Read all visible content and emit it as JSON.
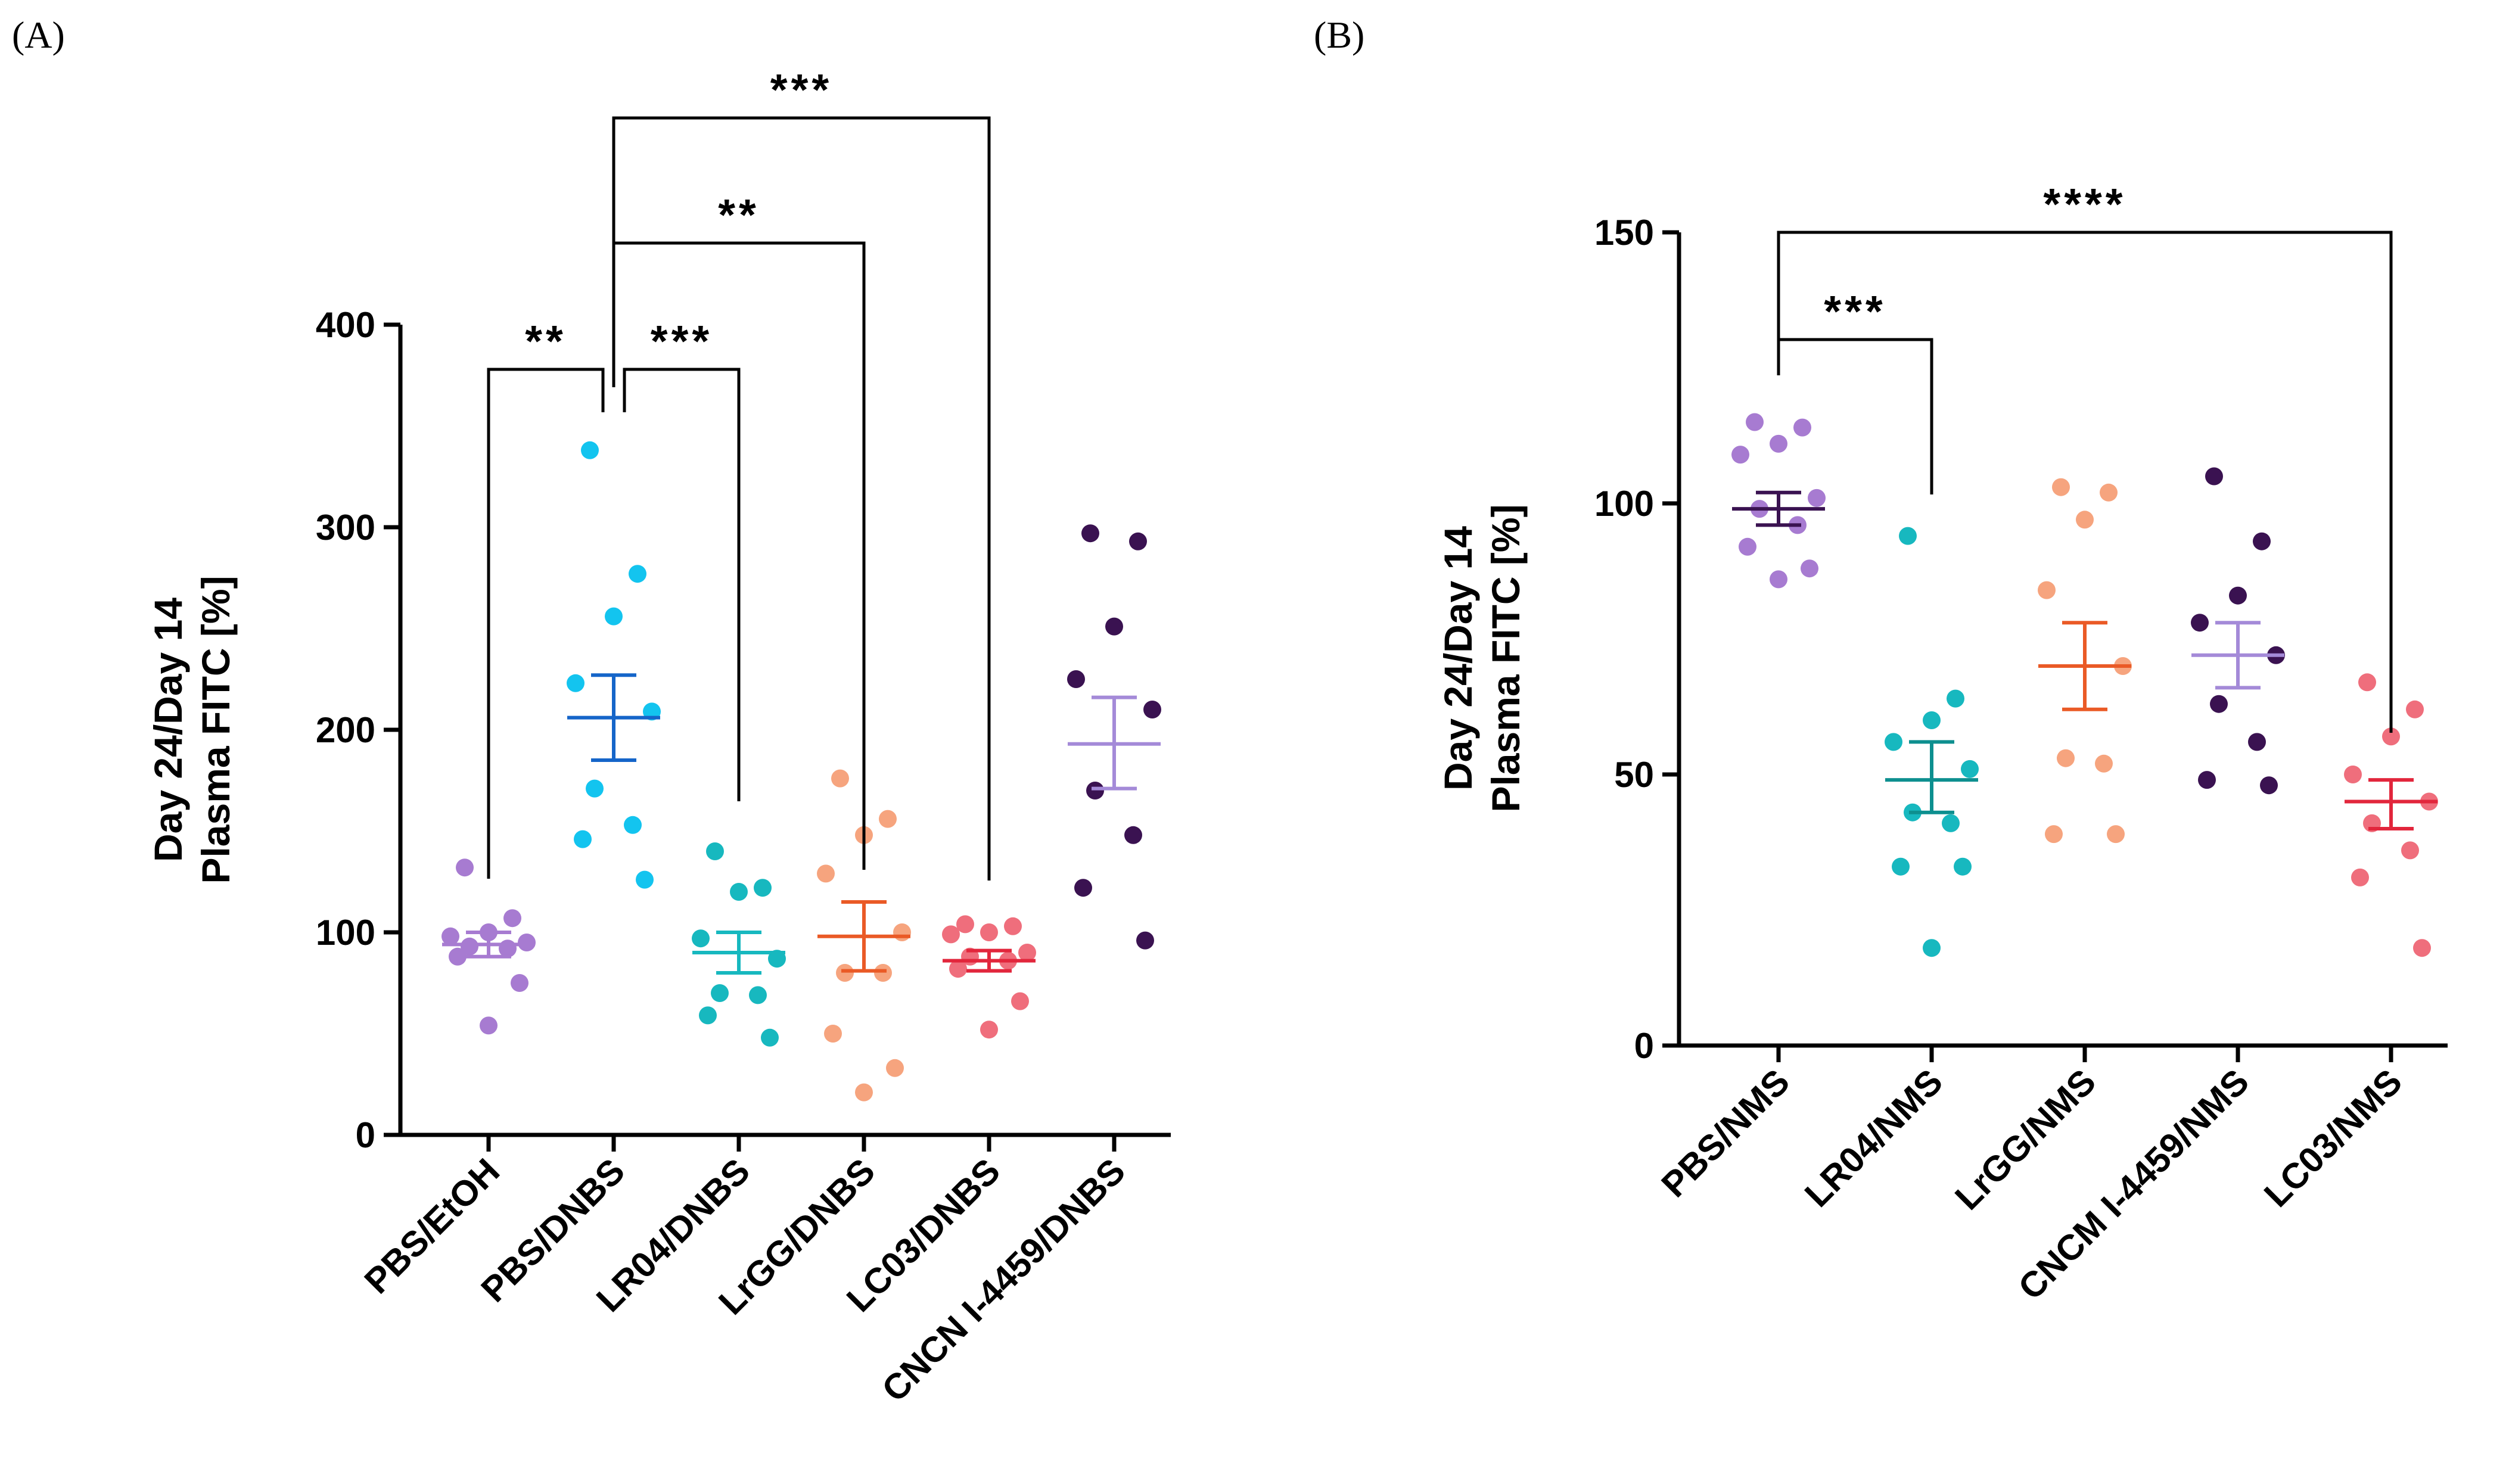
{
  "chart_data": [
    {
      "type": "scatter",
      "panel": "(A)",
      "ylabel": [
        "Day 24/Day 14",
        "Plasma FITC [%]"
      ],
      "ylim": [
        0,
        400
      ],
      "yticks": [
        0,
        100,
        200,
        300,
        400
      ],
      "groups": [
        {
          "name": "PBS/EtOH",
          "color": "#a77bd1",
          "mean": 94,
          "sem_low": 88,
          "sem_high": 100,
          "points": [
            132,
            107,
            100,
            98,
            95,
            93,
            92,
            88,
            75,
            54
          ]
        },
        {
          "name": "PBS/DNBS",
          "color": "#13c4ef",
          "error_color": "#1565c9",
          "mean": 206,
          "sem_low": 185,
          "sem_high": 227,
          "points": [
            338,
            277,
            256,
            223,
            209,
            171,
            153,
            146,
            126
          ]
        },
        {
          "name": "LR04/DNBS",
          "color": "#17b8bf",
          "mean": 90,
          "sem_low": 80,
          "sem_high": 100,
          "points": [
            140,
            122,
            120,
            97,
            87,
            70,
            69,
            59,
            48
          ]
        },
        {
          "name": "LrGG/DNBS",
          "color": "#f6a47e",
          "error_color": "#ea5a26",
          "mean": 98,
          "sem_low": 81,
          "sem_high": 115,
          "points": [
            176,
            156,
            148,
            129,
            100,
            80,
            80,
            50,
            33,
            21
          ]
        },
        {
          "name": "LC03/DNBS",
          "color": "#ef6e7c",
          "error_color": "#e2263c",
          "mean": 86,
          "sem_low": 81,
          "sem_high": 91,
          "points": [
            104,
            103,
            100,
            99,
            90,
            88,
            86,
            82,
            66,
            52
          ]
        },
        {
          "name": "CNCN I-4459/DNBS",
          "color": "#3a1251",
          "error_color": "#a48ad8",
          "mean": 193,
          "sem_low": 171,
          "sem_high": 216,
          "points": [
            297,
            293,
            251,
            225,
            210,
            170,
            148,
            122,
            96
          ]
        }
      ],
      "significance": [
        {
          "from": "PBS/EtOH",
          "to": "PBS/DNBS",
          "label": "**"
        },
        {
          "from": "PBS/DNBS",
          "to": "LR04/DNBS",
          "label": "***"
        },
        {
          "from": "PBS/DNBS",
          "to": "LrGG/DNBS",
          "label": "**"
        },
        {
          "from": "PBS/DNBS",
          "to": "LC03/DNBS",
          "label": "***"
        }
      ]
    },
    {
      "type": "scatter",
      "panel": "(B)",
      "ylabel": [
        "Day 24/Day 14",
        "Plasma FITC [%]"
      ],
      "ylim": [
        0,
        150
      ],
      "yticks": [
        0,
        50,
        100,
        150
      ],
      "groups": [
        {
          "name": "PBS/NMS",
          "color": "#a77bd1",
          "error_color": "#3a1251",
          "mean": 99,
          "sem_low": 96,
          "sem_high": 102,
          "points": [
            115,
            114,
            111,
            109,
            101,
            99,
            96,
            92,
            88,
            86
          ]
        },
        {
          "name": "LR04/NMS",
          "color": "#17b8bf",
          "error_color": "#0d8f8f",
          "mean": 49,
          "sem_low": 43,
          "sem_high": 56,
          "points": [
            94,
            64,
            60,
            56,
            51,
            43,
            41,
            33,
            33,
            18
          ]
        },
        {
          "name": "LrGG/NMS",
          "color": "#f6a47e",
          "error_color": "#ea5a26",
          "mean": 70,
          "sem_low": 62,
          "sem_high": 78,
          "points": [
            103,
            102,
            97,
            84,
            70,
            53,
            52,
            39,
            39
          ]
        },
        {
          "name": "CNCM I-4459/NMS",
          "color": "#3a1251",
          "error_color": "#a48ad8",
          "mean": 72,
          "sem_low": 66,
          "sem_high": 78,
          "points": [
            105,
            93,
            83,
            78,
            72,
            63,
            56,
            49,
            48
          ]
        },
        {
          "name": "LC03/NMS",
          "color": "#ef6e7c",
          "error_color": "#e2263c",
          "mean": 45,
          "sem_low": 40,
          "sem_high": 49,
          "points": [
            67,
            62,
            57,
            50,
            45,
            41,
            36,
            31,
            18
          ]
        }
      ],
      "significance": [
        {
          "from": "PBS/NMS",
          "to": "LR04/NMS",
          "label": "***"
        },
        {
          "from": "PBS/NMS",
          "to": "LC03/NMS",
          "label": "****"
        }
      ]
    }
  ]
}
